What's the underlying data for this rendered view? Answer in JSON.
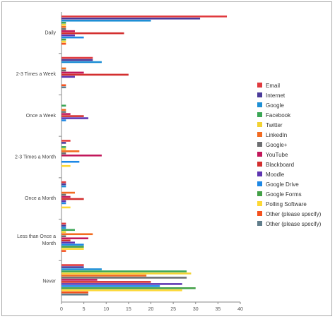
{
  "chart_data": {
    "type": "bar",
    "orientation": "horizontal",
    "categories": [
      "Daily",
      "2-3 Times a Week",
      "Once a Week",
      "2-3 Times a Month",
      "Once a Month",
      "Less than Once a Month",
      "Never"
    ],
    "xlim": [
      0,
      40
    ],
    "xticks": [
      0,
      5,
      10,
      15,
      20,
      25,
      30,
      35,
      40
    ],
    "legend_position": "right",
    "series": [
      {
        "name": "Email",
        "color": "#e03a3e",
        "values": [
          37,
          7,
          0,
          2,
          1,
          1,
          5
        ]
      },
      {
        "name": "Internet",
        "color": "#4b3b9a",
        "values": [
          31,
          7,
          0,
          1,
          1,
          1,
          5
        ]
      },
      {
        "name": "Google",
        "color": "#1e8fd5",
        "values": [
          20,
          9,
          0,
          0,
          1,
          1,
          9
        ]
      },
      {
        "name": "Facebook",
        "color": "#3aa655",
        "values": [
          1,
          0,
          1,
          1,
          0,
          3,
          28
        ]
      },
      {
        "name": "Twitter",
        "color": "#f2d233",
        "values": [
          1,
          0,
          0,
          1,
          0,
          1,
          29
        ]
      },
      {
        "name": "LinkedIn",
        "color": "#f26b21",
        "values": [
          1,
          1,
          1,
          4,
          3,
          7,
          19
        ]
      },
      {
        "name": "Google+",
        "color": "#6d6e71",
        "values": [
          1,
          1,
          1,
          1,
          1,
          1,
          28
        ]
      },
      {
        "name": "YouTube",
        "color": "#c2185b",
        "values": [
          3,
          5,
          2,
          9,
          2,
          6,
          8
        ]
      },
      {
        "name": "Blackboard",
        "color": "#d32f2f",
        "values": [
          14,
          15,
          5,
          0,
          5,
          2,
          20
        ]
      },
      {
        "name": "Moodle",
        "color": "#5e35b1",
        "values": [
          3,
          3,
          6,
          0,
          1,
          3,
          27
        ]
      },
      {
        "name": "Google Drive",
        "color": "#1e88e5",
        "values": [
          5,
          0,
          1,
          4,
          1,
          5,
          22
        ]
      },
      {
        "name": "Google Forms",
        "color": "#43a047",
        "values": [
          1,
          0,
          0,
          0,
          0,
          5,
          30
        ]
      },
      {
        "name": "Polling Software",
        "color": "#fdd835",
        "values": [
          1,
          0,
          0,
          2,
          2,
          5,
          27
        ]
      },
      {
        "name": "Other (please specify)",
        "color": "#f4511e",
        "values": [
          1,
          1,
          0,
          0,
          0,
          1,
          6
        ]
      },
      {
        "name": "Other (please specify)",
        "color": "#607d8b",
        "values": [
          0,
          1,
          0,
          0,
          0,
          0,
          6
        ]
      }
    ]
  }
}
